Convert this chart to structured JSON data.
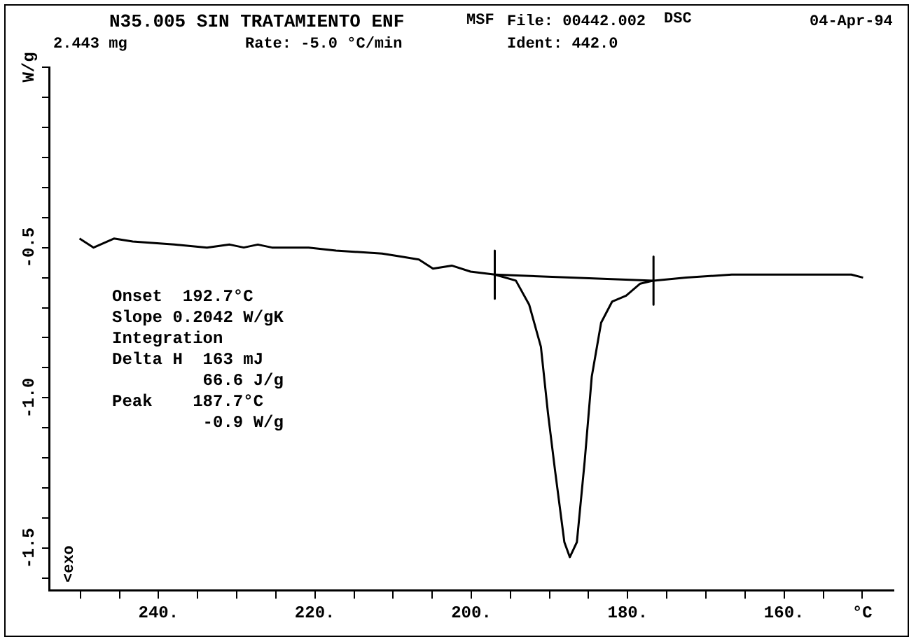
{
  "chart_data": {
    "type": "line",
    "title": "N35.005 SIN TRATAMIENTO ENF",
    "annotations": [
      "MSF",
      "File: 00442.002",
      "DSC",
      "04-Apr-94",
      "2.443 mg",
      "Rate: -5.0 °C/min",
      "Ident: 442.0",
      "Onset  192.7°C\nSlope 0.2042 W/gK\nIntegration\nDelta H  163 mJ\n         66.6 J/g\nPeak    187.7°C\n         -0.9 W/g",
      "<exo"
    ],
    "xlim": [
      254,
      146
    ],
    "xticks": [
      {
        "value": 250,
        "label": null
      },
      {
        "value": 245,
        "label": null
      },
      {
        "value": 240,
        "label": "240."
      },
      {
        "value": 235,
        "label": null
      },
      {
        "value": 230,
        "label": null
      },
      {
        "value": 225,
        "label": null
      },
      {
        "value": 220,
        "label": "220."
      },
      {
        "value": 215,
        "label": null
      },
      {
        "value": 210,
        "label": null
      },
      {
        "value": 205,
        "label": null
      },
      {
        "value": 200,
        "label": "200."
      },
      {
        "value": 195,
        "label": null
      },
      {
        "value": 190,
        "label": null
      },
      {
        "value": 185,
        "label": null
      },
      {
        "value": 180,
        "label": "180."
      },
      {
        "value": 175,
        "label": null
      },
      {
        "value": 170,
        "label": null
      },
      {
        "value": 165,
        "label": null
      },
      {
        "value": 160,
        "label": "160."
      },
      {
        "value": 155,
        "label": null
      },
      {
        "value": 150,
        "label": "°C"
      }
    ],
    "ylim": [
      -1.64,
      0.1
    ],
    "yticks": [
      {
        "value": 0.1,
        "label": "W/g"
      },
      {
        "value": 0,
        "label": null
      },
      {
        "value": -0.1,
        "label": null
      },
      {
        "value": -0.2,
        "label": null
      },
      {
        "value": -0.3,
        "label": null
      },
      {
        "value": -0.4,
        "label": null
      },
      {
        "value": -0.5,
        "label": "-0.5"
      },
      {
        "value": -0.6,
        "label": null
      },
      {
        "value": -0.7,
        "label": null
      },
      {
        "value": -0.8,
        "label": null
      },
      {
        "value": -0.9,
        "label": null
      },
      {
        "value": -1.0,
        "label": "-1.0"
      },
      {
        "value": -1.1,
        "label": null
      },
      {
        "value": -1.2,
        "label": null
      },
      {
        "value": -1.3,
        "label": null
      },
      {
        "value": -1.4,
        "label": null
      },
      {
        "value": -1.5,
        "label": "-1.5"
      },
      {
        "value": -1.6,
        "label": null
      }
    ],
    "marker": "none",
    "line_style": "solid",
    "series": [
      {
        "color": "#000000",
        "x": [
          250.1,
          248.3,
          245.7,
          243.3,
          238,
          233.8,
          230.9,
          229.1,
          227.3,
          225.5,
          220.8,
          217.3,
          211.4,
          209,
          206.7,
          204.9,
          202.5,
          200.1,
          197.0,
          194.3,
          192.6,
          191.1,
          190.2,
          189.3,
          188.1,
          187.4,
          186.5,
          185.5,
          184.6,
          183.4,
          182.0,
          180.2,
          178.4,
          176.7,
          172.5,
          166.7,
          160.8,
          154.9,
          151.4,
          149.9
        ],
        "values": [
          -0.47,
          -0.5,
          -0.47,
          -0.48,
          -0.49,
          -0.5,
          -0.49,
          -0.5,
          -0.49,
          -0.5,
          -0.5,
          -0.51,
          -0.52,
          -0.53,
          -0.54,
          -0.57,
          -0.56,
          -0.58,
          -0.59,
          -0.61,
          -0.69,
          -0.83,
          -1.05,
          -1.24,
          -1.48,
          -1.53,
          -1.48,
          -1.21,
          -0.93,
          -0.75,
          -0.68,
          -0.66,
          -0.62,
          -0.61,
          -0.6,
          -0.59,
          -0.59,
          -0.59,
          -0.59,
          -0.6
        ]
      },
      {
        "color": "#000000",
        "x": [
          197.0,
          176.7
        ],
        "values": [
          -0.59,
          -0.61
        ]
      },
      {
        "color": "#000000",
        "x": [
          197.0,
          197.0
        ],
        "values": [
          -0.51,
          -0.67
        ]
      },
      {
        "color": "#000000",
        "x": [
          176.7,
          176.7
        ],
        "values": [
          -0.53,
          -0.69
        ]
      }
    ]
  }
}
